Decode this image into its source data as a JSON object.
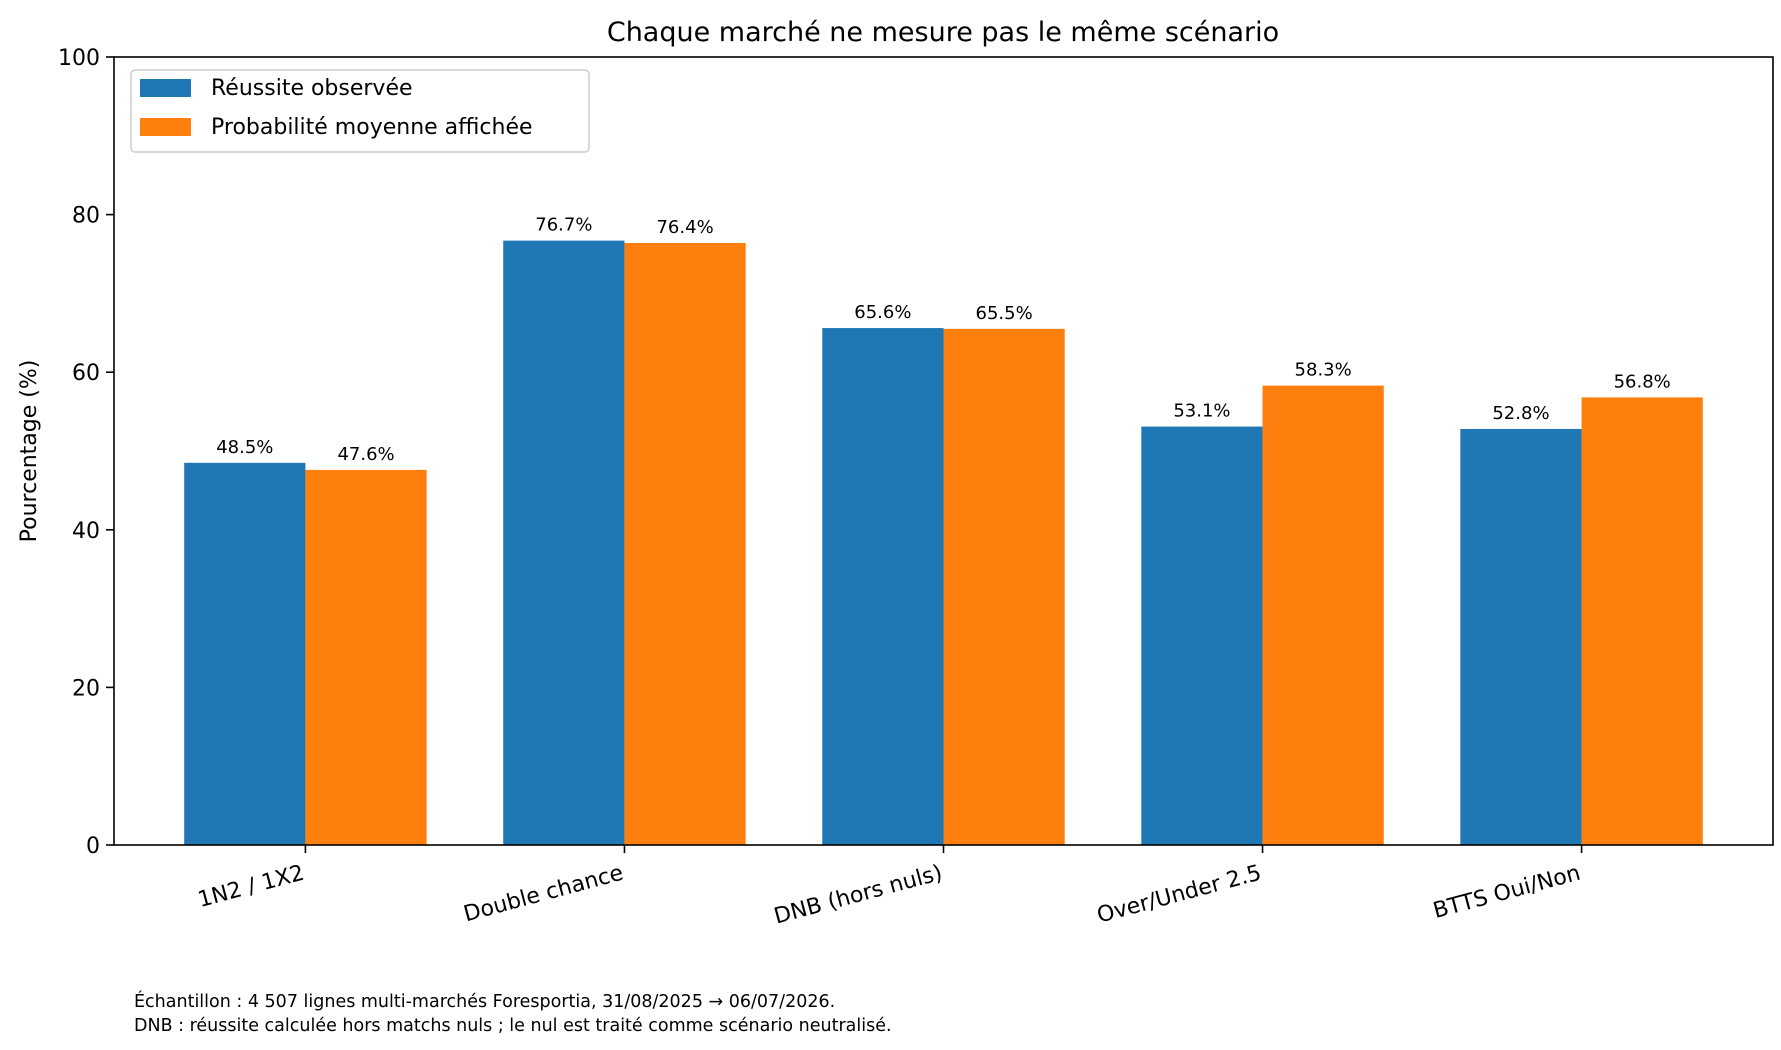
{
  "chart_data": {
    "type": "bar",
    "title": "Chaque marché ne mesure pas le même scénario",
    "xlabel": "",
    "ylabel": "Pourcentage (%)",
    "ylim": [
      0,
      100
    ],
    "yticks": [
      0,
      20,
      40,
      60,
      80,
      100
    ],
    "categories": [
      "1N2 / 1X2",
      "Double chance",
      "DNB (hors nuls)",
      "Over/Under 2.5",
      "BTTS Oui/Non"
    ],
    "series": [
      {
        "name": "Réussite observée",
        "color": "#1f77b4",
        "values": [
          48.5,
          76.7,
          65.6,
          53.1,
          52.8
        ],
        "labels": [
          "48.5%",
          "76.7%",
          "65.6%",
          "53.1%",
          "52.8%"
        ]
      },
      {
        "name": "Probabilité moyenne affichée",
        "color": "#ff7f0e",
        "values": [
          47.6,
          76.4,
          65.5,
          58.3,
          56.8
        ],
        "labels": [
          "47.6%",
          "76.4%",
          "65.5%",
          "58.3%",
          "56.8%"
        ]
      }
    ],
    "legend_position": "top-left",
    "grid": false,
    "x_tick_rotation": "slanted"
  },
  "footnotes": [
    "Échantillon : 4 507 lignes multi-marchés Foresportia, 31/08/2025 → 06/07/2026.",
    "DNB : réussite calculée hors matchs nuls ; le nul est traité comme scénario neutralisé."
  ]
}
